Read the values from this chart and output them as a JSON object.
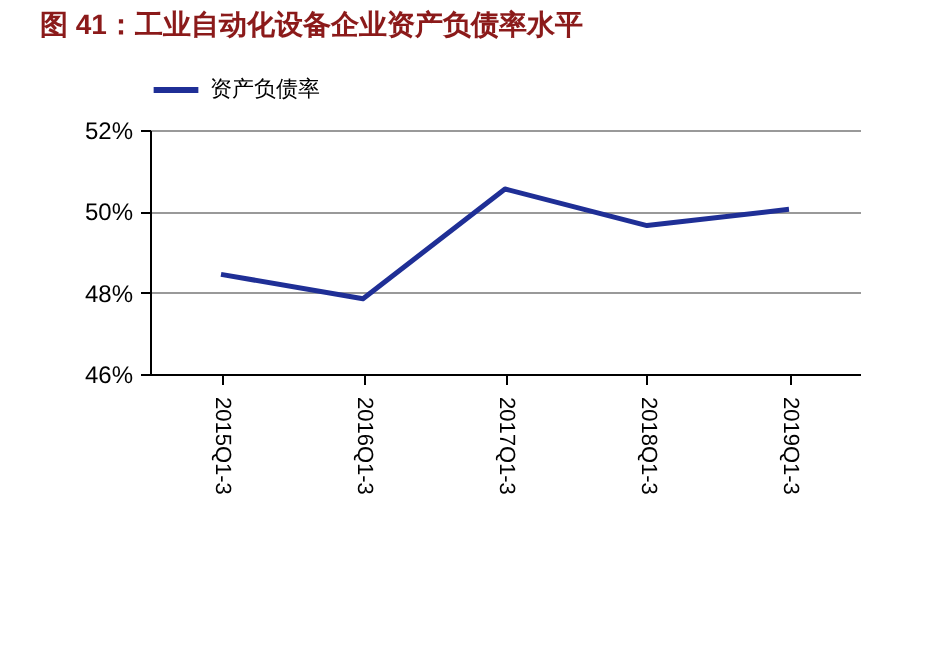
{
  "chart_data": {
    "type": "line",
    "title": "图 41：工业自动化设备企业资产负债率水平",
    "categories": [
      "2015Q1-3",
      "2016Q1-3",
      "2017Q1-3",
      "2018Q1-3",
      "2019Q1-3"
    ],
    "series": [
      {
        "name": "资产负债率",
        "color": "#1f2f96",
        "values": [
          48.45,
          47.85,
          50.55,
          49.65,
          50.05
        ]
      }
    ],
    "ylim": [
      46,
      52
    ],
    "yticks": [
      {
        "value": 46,
        "label": "46%"
      },
      {
        "value": 48,
        "label": "48%"
      },
      {
        "value": 50,
        "label": "50%"
      },
      {
        "value": 52,
        "label": "52%"
      }
    ],
    "grid": "y",
    "legend": "top",
    "marker": "none",
    "line_style": "solid"
  }
}
